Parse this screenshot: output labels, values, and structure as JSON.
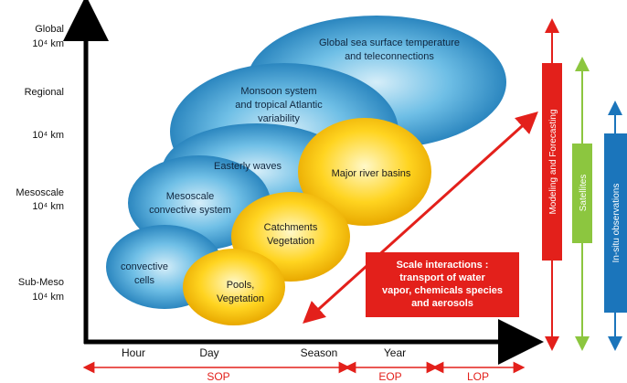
{
  "y_axis": {
    "labels": [
      {
        "line1": "Global",
        "line2": "10⁴ km"
      },
      {
        "line1": "Regional",
        "line2": ""
      },
      {
        "line1": "10⁴ km",
        "line2": ""
      },
      {
        "line1": "Mesoscale",
        "line2": "10⁴ km"
      },
      {
        "line1": "Sub-Meso",
        "line2": "10⁴ km"
      }
    ]
  },
  "x_axis": {
    "labels": [
      "Hour",
      "Day",
      "Season",
      "Year"
    ]
  },
  "periods": [
    "SOP",
    "EOP",
    "LOP"
  ],
  "blue_ellipses": [
    {
      "line1": "Global sea surface temperature",
      "line2": "and teleconnections",
      "line3": ""
    },
    {
      "line1": "Monsoon system",
      "line2": "and tropical Atlantic",
      "line3": "variability"
    },
    {
      "line1": "Easterly waves",
      "line2": "",
      "line3": ""
    },
    {
      "line1": "Mesoscale",
      "line2": "convective system",
      "line3": ""
    },
    {
      "line1": "convective",
      "line2": "cells",
      "line3": ""
    }
  ],
  "yellow_ellipses": [
    {
      "line1": "Major river basins",
      "line2": ""
    },
    {
      "line1": "Catchments",
      "line2": "Vegetation"
    },
    {
      "line1": "Pools,",
      "line2": "Vegetation"
    }
  ],
  "scale_box": {
    "line1": "Scale interactions :",
    "line2": "transport of water",
    "line3": "vapor, chemicals species",
    "line4": "and aerosols"
  },
  "side_bars": [
    "Modeling and Forecasting",
    "Satellites",
    "In-situ observations"
  ],
  "colors": {
    "red": "#e3201b",
    "green": "#8cc63f",
    "blue_bar": "#1b75bb",
    "yellow": "#ffd21f",
    "ellipse_blue": "#3a9bd0"
  }
}
